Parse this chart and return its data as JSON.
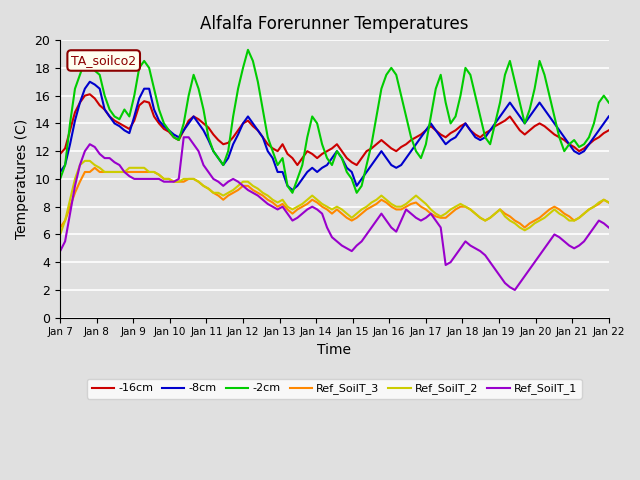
{
  "title": "Alfalfa Forerunner Temperatures",
  "xlabel": "Time",
  "ylabel": "Temperatures (C)",
  "annotation": "TA_soilco2",
  "ylim": [
    0,
    20
  ],
  "background_color": "#e0e0e0",
  "plot_background": "#e0e0e0",
  "grid_color": "white",
  "x_ticks": [
    "Jan 7",
    "Jan 8",
    "Jan 9",
    "Jan 10",
    "Jan 11",
    "Jan 12",
    "Jan 13",
    "Jan 14",
    "Jan 15",
    "Jan 16",
    "Jan 17",
    "Jan 18",
    "Jan 19",
    "Jan 20",
    "Jan 21",
    "Jan 22"
  ],
  "colors": {
    "neg16cm": "#cc0000",
    "neg8cm": "#0000cc",
    "neg2cm": "#00cc00",
    "ref_soilT3": "#ff8800",
    "ref_soilT2": "#cccc00",
    "ref_soilT1": "#9900cc"
  },
  "labels": {
    "neg16cm": "-16cm",
    "neg8cm": "-8cm",
    "neg2cm": "-2cm",
    "ref_soilT3": "Ref_SoilT_3",
    "ref_soilT2": "Ref_SoilT_2",
    "ref_soilT1": "Ref_SoilT_1"
  },
  "neg16cm_data": [
    11.8,
    12.2,
    13.5,
    14.8,
    15.5,
    16.0,
    16.1,
    15.8,
    15.3,
    15.0,
    14.5,
    14.2,
    14.0,
    13.8,
    13.6,
    14.2,
    15.3,
    15.6,
    15.5,
    14.5,
    14.0,
    13.6,
    13.4,
    13.0,
    12.8,
    13.5,
    14.2,
    14.5,
    14.3,
    14.0,
    13.7,
    13.2,
    12.8,
    12.5,
    12.6,
    13.0,
    13.5,
    14.0,
    14.2,
    13.8,
    13.5,
    13.0,
    12.5,
    12.2,
    12.0,
    12.5,
    11.8,
    11.5,
    11.0,
    11.5,
    12.0,
    11.8,
    11.5,
    11.8,
    12.0,
    12.2,
    12.5,
    12.0,
    11.5,
    11.2,
    11.0,
    11.5,
    12.0,
    12.2,
    12.5,
    12.8,
    12.5,
    12.2,
    12.0,
    12.3,
    12.5,
    12.8,
    13.0,
    13.2,
    13.5,
    13.8,
    13.5,
    13.2,
    13.0,
    13.3,
    13.5,
    13.8,
    14.0,
    13.5,
    13.2,
    13.0,
    13.3,
    13.5,
    13.8,
    14.0,
    14.2,
    14.5,
    14.0,
    13.5,
    13.2,
    13.5,
    13.8,
    14.0,
    13.8,
    13.5,
    13.2,
    13.0,
    12.8,
    12.5,
    12.3,
    12.0,
    12.2,
    12.5,
    12.8,
    13.0,
    13.3,
    13.5
  ],
  "neg8cm_data": [
    10.5,
    11.0,
    12.5,
    14.2,
    15.5,
    16.5,
    17.0,
    16.8,
    16.5,
    15.0,
    14.5,
    14.0,
    13.8,
    13.5,
    13.3,
    14.5,
    15.8,
    16.5,
    16.5,
    15.0,
    14.2,
    13.8,
    13.5,
    13.2,
    13.0,
    13.5,
    14.0,
    14.5,
    14.0,
    13.5,
    12.8,
    12.0,
    11.5,
    11.0,
    11.5,
    12.5,
    13.2,
    14.0,
    14.5,
    14.0,
    13.5,
    13.0,
    12.0,
    11.5,
    10.5,
    10.5,
    9.5,
    9.2,
    9.5,
    10.0,
    10.5,
    10.8,
    10.5,
    10.8,
    11.0,
    11.5,
    12.0,
    11.5,
    10.8,
    10.5,
    9.5,
    10.0,
    10.5,
    11.0,
    11.5,
    12.0,
    11.5,
    11.0,
    10.8,
    11.0,
    11.5,
    12.0,
    12.5,
    13.0,
    13.5,
    14.0,
    13.5,
    13.0,
    12.5,
    12.8,
    13.0,
    13.5,
    14.0,
    13.5,
    13.0,
    12.8,
    13.0,
    13.5,
    14.0,
    14.5,
    15.0,
    15.5,
    15.0,
    14.5,
    14.0,
    14.5,
    15.0,
    15.5,
    15.0,
    14.5,
    14.0,
    13.5,
    13.0,
    12.5,
    12.0,
    11.8,
    12.0,
    12.5,
    13.0,
    13.5,
    14.0,
    14.5
  ],
  "neg2cm_data": [
    10.0,
    11.0,
    14.0,
    16.5,
    17.5,
    18.5,
    18.7,
    17.8,
    17.5,
    16.0,
    15.0,
    14.5,
    14.3,
    15.0,
    14.5,
    16.0,
    18.0,
    18.5,
    18.0,
    16.5,
    15.0,
    14.0,
    13.5,
    13.0,
    12.8,
    14.0,
    16.0,
    17.5,
    16.5,
    15.0,
    13.0,
    12.0,
    11.5,
    11.0,
    12.0,
    14.5,
    16.5,
    18.0,
    19.3,
    18.5,
    17.0,
    15.0,
    13.0,
    12.0,
    11.0,
    11.5,
    9.5,
    9.0,
    10.0,
    11.0,
    13.0,
    14.5,
    14.0,
    12.5,
    11.5,
    11.0,
    12.0,
    11.5,
    10.5,
    10.0,
    9.0,
    9.5,
    11.0,
    12.5,
    14.5,
    16.5,
    17.5,
    18.0,
    17.5,
    16.0,
    14.5,
    13.0,
    12.0,
    11.5,
    12.5,
    14.5,
    16.5,
    17.5,
    15.5,
    14.0,
    14.5,
    16.0,
    18.0,
    17.5,
    16.0,
    14.5,
    13.0,
    12.5,
    14.0,
    15.5,
    17.5,
    18.5,
    17.0,
    15.5,
    14.0,
    15.0,
    16.5,
    18.5,
    17.5,
    16.0,
    14.5,
    13.0,
    12.0,
    12.5,
    12.8,
    12.3,
    12.5,
    13.0,
    14.0,
    15.5,
    16.0,
    15.5
  ],
  "ref_soilT3_data": [
    6.5,
    7.0,
    8.0,
    9.0,
    9.8,
    10.5,
    10.5,
    10.8,
    10.5,
    10.5,
    10.5,
    10.5,
    10.5,
    10.5,
    10.5,
    10.5,
    10.5,
    10.5,
    10.5,
    10.5,
    10.3,
    10.0,
    10.0,
    9.8,
    9.8,
    9.8,
    10.0,
    10.0,
    9.8,
    9.5,
    9.3,
    9.0,
    8.8,
    8.5,
    8.8,
    9.0,
    9.2,
    9.5,
    9.5,
    9.2,
    9.0,
    8.8,
    8.5,
    8.3,
    8.0,
    8.2,
    7.8,
    7.5,
    7.8,
    8.0,
    8.2,
    8.5,
    8.3,
    8.0,
    7.8,
    7.5,
    7.8,
    7.5,
    7.2,
    7.0,
    7.2,
    7.5,
    7.8,
    8.0,
    8.2,
    8.5,
    8.3,
    8.0,
    7.8,
    7.8,
    8.0,
    8.2,
    8.3,
    8.0,
    7.8,
    7.5,
    7.3,
    7.2,
    7.2,
    7.5,
    7.8,
    8.0,
    8.0,
    7.8,
    7.5,
    7.2,
    7.0,
    7.2,
    7.5,
    7.8,
    7.5,
    7.3,
    7.0,
    6.8,
    6.5,
    6.8,
    7.0,
    7.2,
    7.5,
    7.8,
    8.0,
    7.8,
    7.5,
    7.3,
    7.0,
    7.2,
    7.5,
    7.8,
    8.0,
    8.2,
    8.5,
    8.3
  ],
  "ref_soilT2_data": [
    6.0,
    7.0,
    8.5,
    10.0,
    11.0,
    11.3,
    11.3,
    11.0,
    10.8,
    10.5,
    10.5,
    10.5,
    10.5,
    10.5,
    10.8,
    10.8,
    10.8,
    10.8,
    10.5,
    10.5,
    10.3,
    10.0,
    10.0,
    9.8,
    9.8,
    10.0,
    10.0,
    10.0,
    9.8,
    9.5,
    9.3,
    9.0,
    9.0,
    8.8,
    9.0,
    9.2,
    9.5,
    9.8,
    9.8,
    9.5,
    9.3,
    9.0,
    8.8,
    8.5,
    8.3,
    8.5,
    8.0,
    7.8,
    8.0,
    8.2,
    8.5,
    8.8,
    8.5,
    8.2,
    8.0,
    7.8,
    8.0,
    7.8,
    7.5,
    7.2,
    7.5,
    7.8,
    8.0,
    8.3,
    8.5,
    8.8,
    8.5,
    8.2,
    8.0,
    8.0,
    8.2,
    8.5,
    8.8,
    8.5,
    8.2,
    7.8,
    7.5,
    7.3,
    7.5,
    7.8,
    8.0,
    8.2,
    8.0,
    7.8,
    7.5,
    7.2,
    7.0,
    7.2,
    7.5,
    7.8,
    7.3,
    7.0,
    6.8,
    6.5,
    6.3,
    6.5,
    6.8,
    7.0,
    7.2,
    7.5,
    7.8,
    7.5,
    7.3,
    7.0,
    7.0,
    7.2,
    7.5,
    7.8,
    8.0,
    8.3,
    8.5,
    8.3
  ],
  "ref_soilT1_data": [
    4.8,
    5.5,
    7.5,
    9.5,
    11.0,
    12.0,
    12.5,
    12.3,
    11.8,
    11.5,
    11.5,
    11.2,
    11.0,
    10.5,
    10.2,
    10.0,
    10.0,
    10.0,
    10.0,
    10.0,
    10.0,
    9.8,
    9.8,
    9.8,
    10.0,
    13.0,
    13.0,
    12.5,
    12.0,
    11.0,
    10.5,
    10.0,
    9.8,
    9.5,
    9.8,
    10.0,
    9.8,
    9.5,
    9.2,
    9.0,
    8.8,
    8.5,
    8.2,
    8.0,
    7.8,
    8.0,
    7.5,
    7.0,
    7.2,
    7.5,
    7.8,
    8.0,
    7.8,
    7.5,
    6.5,
    5.8,
    5.5,
    5.2,
    5.0,
    4.8,
    5.2,
    5.5,
    6.0,
    6.5,
    7.0,
    7.5,
    7.0,
    6.5,
    6.2,
    7.0,
    7.8,
    7.5,
    7.2,
    7.0,
    7.2,
    7.5,
    7.0,
    6.5,
    3.8,
    4.0,
    4.5,
    5.0,
    5.5,
    5.2,
    5.0,
    4.8,
    4.5,
    4.0,
    3.5,
    3.0,
    2.5,
    2.2,
    2.0,
    2.5,
    3.0,
    3.5,
    4.0,
    4.5,
    5.0,
    5.5,
    6.0,
    5.8,
    5.5,
    5.2,
    5.0,
    5.2,
    5.5,
    6.0,
    6.5,
    7.0,
    6.8,
    6.5
  ]
}
